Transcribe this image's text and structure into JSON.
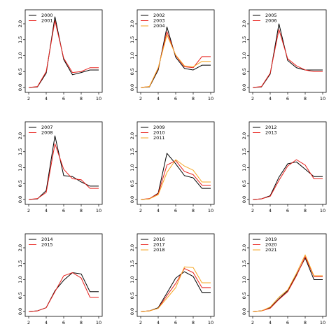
{
  "colors": {
    "black": "#000000",
    "red": "#e8211c",
    "orange": "#f5a623",
    "axis": "#000000"
  },
  "chart_data": [
    {
      "type": "line",
      "xlim": [
        2,
        10
      ],
      "ylim": [
        0,
        2
      ],
      "x": [
        2,
        3,
        4,
        5,
        6,
        7,
        8,
        9,
        10
      ],
      "series": [
        {
          "name": "2000",
          "color": "black",
          "values": [
            0,
            0.02,
            0.45,
            2.22,
            0.88,
            0.4,
            0.47,
            0.55,
            0.55
          ]
        },
        {
          "name": "2001",
          "color": "red",
          "values": [
            0,
            0.03,
            0.5,
            2.1,
            0.92,
            0.47,
            0.5,
            0.62,
            0.62
          ]
        }
      ]
    },
    {
      "type": "line",
      "xlim": [
        2,
        10
      ],
      "ylim": [
        0,
        2
      ],
      "x": [
        2,
        3,
        4,
        5,
        6,
        7,
        8,
        9,
        10
      ],
      "series": [
        {
          "name": "2002",
          "color": "black",
          "values": [
            0,
            0.02,
            0.55,
            1.9,
            0.95,
            0.6,
            0.55,
            0.7,
            0.7
          ]
        },
        {
          "name": "2003",
          "color": "red",
          "values": [
            0,
            0.03,
            0.6,
            1.75,
            1.0,
            0.65,
            0.62,
            0.97,
            0.97
          ]
        },
        {
          "name": "2004",
          "color": "orange",
          "values": [
            0,
            0.03,
            0.62,
            1.65,
            1.02,
            0.68,
            0.65,
            0.82,
            0.82
          ]
        }
      ]
    },
    {
      "type": "line",
      "xlim": [
        2,
        10
      ],
      "ylim": [
        0,
        2
      ],
      "x": [
        2,
        3,
        4,
        5,
        6,
        7,
        8,
        9,
        10
      ],
      "series": [
        {
          "name": "2005",
          "color": "black",
          "values": [
            0,
            0.02,
            0.42,
            2.0,
            0.85,
            0.62,
            0.55,
            0.55,
            0.55
          ]
        },
        {
          "name": "2006",
          "color": "red",
          "values": [
            0,
            0.03,
            0.45,
            1.82,
            0.9,
            0.68,
            0.55,
            0.5,
            0.5
          ]
        }
      ]
    },
    {
      "type": "line",
      "xlim": [
        2,
        10
      ],
      "ylim": [
        0,
        2
      ],
      "x": [
        2,
        3,
        4,
        5,
        6,
        7,
        8,
        9,
        10
      ],
      "series": [
        {
          "name": "2007",
          "color": "black",
          "values": [
            0,
            0.02,
            0.28,
            2.0,
            0.75,
            0.72,
            0.55,
            0.42,
            0.42
          ]
        },
        {
          "name": "2008",
          "color": "red",
          "values": [
            0,
            0.03,
            0.22,
            1.75,
            0.95,
            0.65,
            0.62,
            0.35,
            0.35
          ]
        }
      ]
    },
    {
      "type": "line",
      "xlim": [
        2,
        10
      ],
      "ylim": [
        0,
        2
      ],
      "x": [
        2,
        3,
        4,
        5,
        6,
        7,
        8,
        9,
        10
      ],
      "series": [
        {
          "name": "2009",
          "color": "black",
          "values": [
            0,
            0.02,
            0.2,
            1.45,
            1.12,
            0.75,
            0.68,
            0.35,
            0.35
          ]
        },
        {
          "name": "2010",
          "color": "red",
          "values": [
            0,
            0.03,
            0.18,
            1.08,
            1.22,
            0.88,
            0.78,
            0.45,
            0.45
          ]
        },
        {
          "name": "2011",
          "color": "orange",
          "values": [
            0,
            0.02,
            0.15,
            0.85,
            1.25,
            1.05,
            0.92,
            0.55,
            0.55
          ]
        }
      ]
    },
    {
      "type": "line",
      "xlim": [
        2,
        10
      ],
      "ylim": [
        0,
        2
      ],
      "x": [
        2,
        3,
        4,
        5,
        6,
        7,
        8,
        9,
        10
      ],
      "series": [
        {
          "name": "2012",
          "color": "black",
          "values": [
            0,
            0.02,
            0.12,
            0.7,
            1.12,
            1.18,
            0.95,
            0.72,
            0.72
          ]
        },
        {
          "name": "2013",
          "color": "red",
          "values": [
            0,
            0.02,
            0.1,
            0.6,
            1.05,
            1.25,
            1.08,
            0.65,
            0.65
          ]
        }
      ]
    },
    {
      "type": "line",
      "xlim": [
        2,
        10
      ],
      "ylim": [
        0,
        2
      ],
      "x": [
        2,
        3,
        4,
        5,
        6,
        7,
        8,
        9,
        10
      ],
      "series": [
        {
          "name": "2014",
          "color": "black",
          "values": [
            0,
            0.02,
            0.12,
            0.65,
            0.98,
            1.22,
            1.18,
            0.62,
            0.62
          ]
        },
        {
          "name": "2015",
          "color": "red",
          "values": [
            0,
            0.02,
            0.12,
            0.62,
            1.12,
            1.22,
            1.05,
            0.45,
            0.45
          ]
        }
      ]
    },
    {
      "type": "line",
      "xlim": [
        2,
        10
      ],
      "ylim": [
        0,
        2
      ],
      "x": [
        2,
        3,
        4,
        5,
        6,
        7,
        8,
        9,
        10
      ],
      "series": [
        {
          "name": "2016",
          "color": "black",
          "values": [
            0,
            0.02,
            0.12,
            0.58,
            1.05,
            1.25,
            1.1,
            0.6,
            0.6
          ]
        },
        {
          "name": "2017",
          "color": "red",
          "values": [
            0,
            0.02,
            0.1,
            0.5,
            0.88,
            1.35,
            1.22,
            0.75,
            0.75
          ]
        },
        {
          "name": "2018",
          "color": "orange",
          "values": [
            0,
            0.02,
            0.1,
            0.42,
            0.75,
            1.4,
            1.38,
            0.9,
            0.9
          ]
        }
      ]
    },
    {
      "type": "line",
      "xlim": [
        2,
        10
      ],
      "ylim": [
        0,
        2
      ],
      "x": [
        2,
        3,
        4,
        5,
        6,
        7,
        8,
        9,
        10
      ],
      "series": [
        {
          "name": "2019",
          "color": "black",
          "values": [
            0,
            0.02,
            0.12,
            0.4,
            0.65,
            1.15,
            1.68,
            1.0,
            1.0
          ]
        },
        {
          "name": "2020",
          "color": "red",
          "values": [
            0,
            0.02,
            0.1,
            0.38,
            0.62,
            1.12,
            1.72,
            1.1,
            1.1
          ]
        },
        {
          "name": "2021",
          "color": "orange",
          "values": [
            0,
            0.02,
            0.14,
            0.45,
            0.68,
            1.2,
            1.78,
            1.12,
            1.12
          ]
        }
      ]
    }
  ]
}
